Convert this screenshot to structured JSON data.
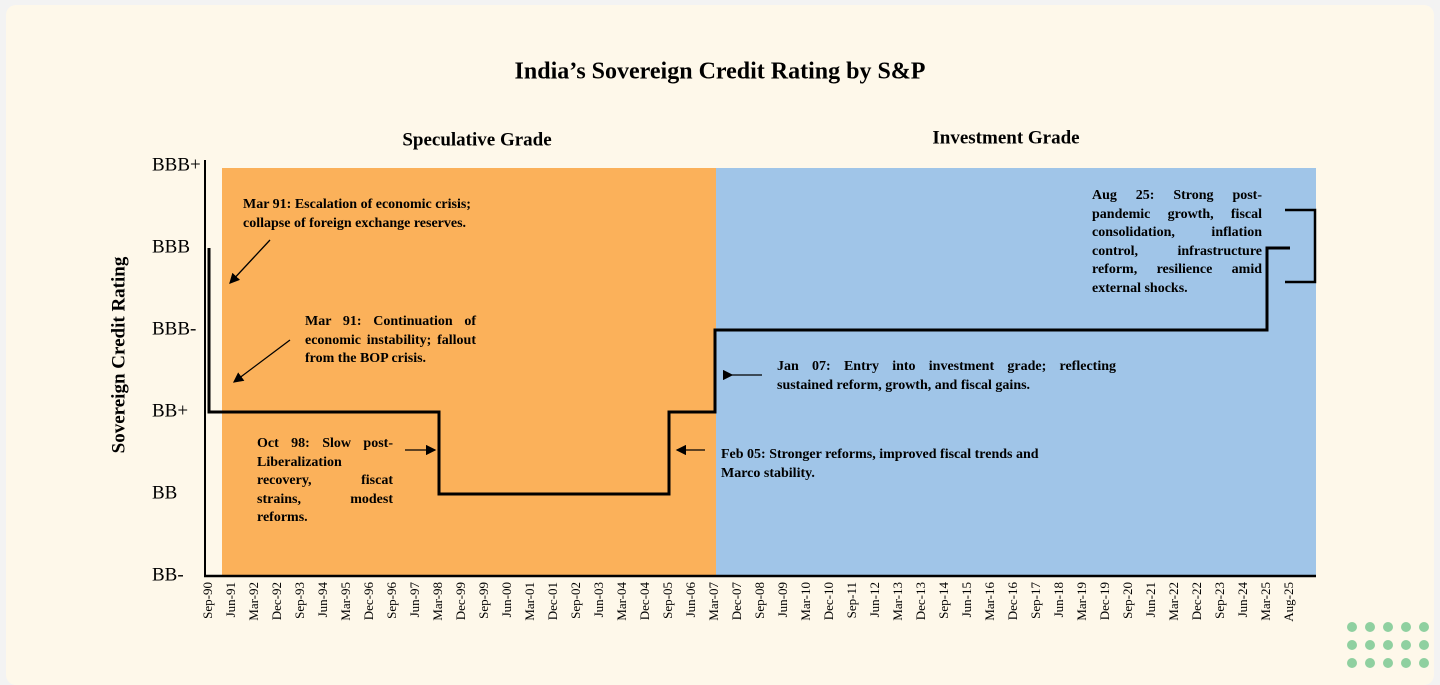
{
  "chart_data": {
    "type": "step",
    "title": "India’s Sovereign Credit Rating by S&P",
    "y_label": "Sovereign Credit Rating",
    "regions": [
      "Speculative Grade",
      "Investment Grade"
    ],
    "categories": [
      "Sep-90",
      "Jun-91",
      "Mar-92",
      "Dec-92",
      "Sep-93",
      "Jun-94",
      "Mar-95",
      "Dec-96",
      "Sep-96",
      "Jun-97",
      "Mar-98",
      "Dec-99",
      "Sep-99",
      "Jun-00",
      "Mar-01",
      "Dec-01",
      "Sep-02",
      "Jun-03",
      "Mar-04",
      "Dec-04",
      "Sep-05",
      "Jun-06",
      "Mar-07",
      "Dec-07",
      "Sep-08",
      "Jun-09",
      "Mar-10",
      "Dec-10",
      "Sep-11",
      "Jun-12",
      "Mar-13",
      "Dec-13",
      "Sep-14",
      "Jun-15",
      "Mar-16",
      "Dec-16",
      "Sep-17",
      "Jun-18",
      "Mar-19",
      "Dec-19",
      "Sep-20",
      "Jun-21",
      "Mar-22",
      "Dec-22",
      "Sep-23",
      "Jun-24",
      "Mar-25",
      "Aug-25"
    ],
    "values": [
      4,
      2,
      2,
      2,
      2,
      2,
      2,
      2,
      2,
      2,
      2,
      1,
      1,
      1,
      1,
      1,
      1,
      1,
      1,
      1,
      1,
      2,
      2,
      3,
      3,
      3,
      3,
      3,
      3,
      3,
      3,
      3,
      3,
      3,
      3,
      3,
      3,
      3,
      3,
      3,
      3,
      3,
      3,
      3,
      3,
      3,
      3,
      4
    ],
    "color": "#000000",
    "ylim": [
      0,
      5
    ],
    "yticks": [
      {
        "value": 0,
        "label": "BB-"
      },
      {
        "value": 1,
        "label": "BB"
      },
      {
        "value": 2,
        "label": "BB+"
      },
      {
        "value": 3,
        "label": "BBB-"
      },
      {
        "value": 4,
        "label": "BBB"
      },
      {
        "value": 5,
        "label": "BBB+"
      }
    ],
    "annotations": [
      "Mar 91: Escalation of economic crisis; collapse of foreign exchange reserves.",
      "Mar 91: Continuation of economic instability; fallout from the BOP crisis.",
      "Oct 98: Slow post-Liberalization recovery, fiscat strains, modest reforms.",
      "Feb 05: Stronger reforms, improved fiscal trends and Marco stability.",
      "Jan 07: Entry into investment grade; reflecting sustained reform, growth, and fiscal gains.",
      "Aug 25: Strong post-pandemic growth, fiscal consolidation, inflation control, infrastructure reform, resilience amid external shocks."
    ]
  }
}
